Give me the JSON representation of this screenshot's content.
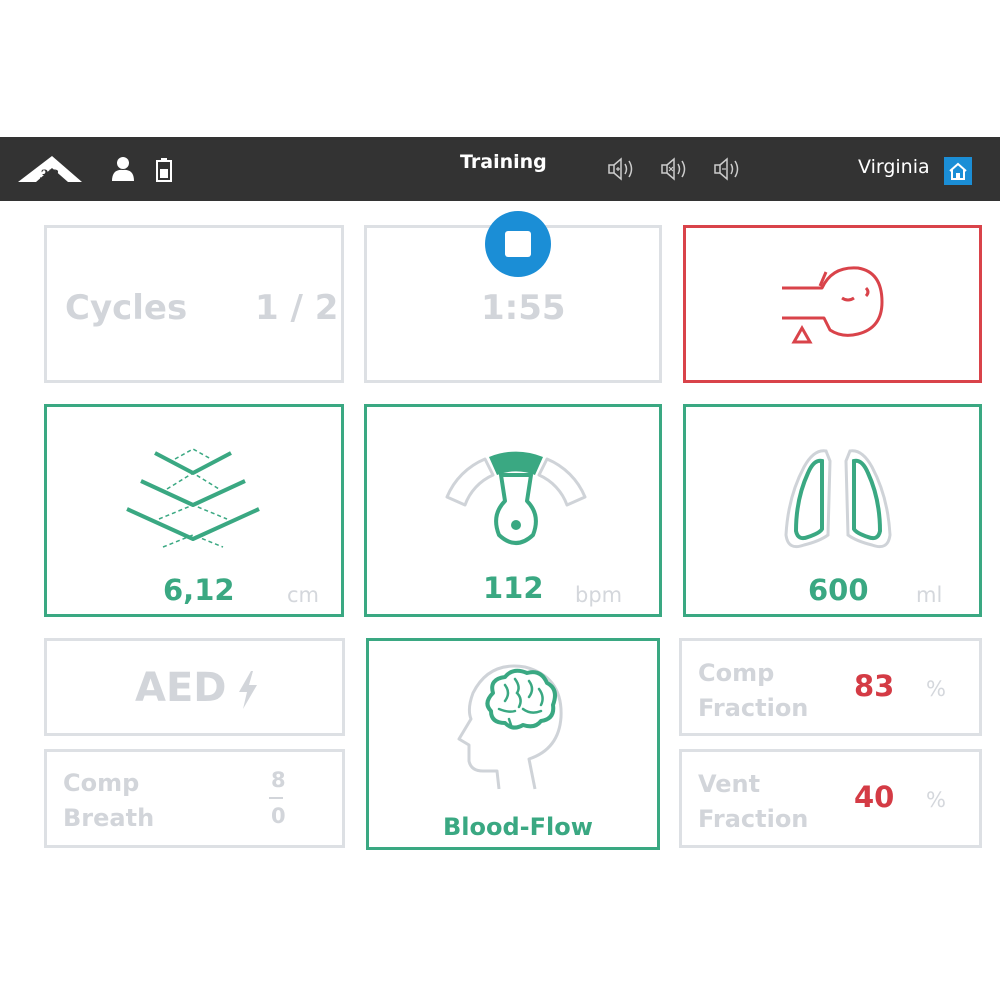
{
  "header": {
    "title": "Training",
    "user_name": "Virginia",
    "icons": [
      "logo-3b",
      "user-icon",
      "battery-icon",
      "volume-up-icon",
      "volume-mute-icon",
      "volume-down-icon",
      "home-icon"
    ]
  },
  "cycles": {
    "label": "Cycles",
    "value": "1 / 2"
  },
  "timer": {
    "value": "1:55",
    "button_icon": "stop-icon"
  },
  "airway": {
    "icon": "head-tilt-airway-icon",
    "status_color": "#d9434a"
  },
  "depth": {
    "value": "6,12",
    "unit": "cm",
    "icon": "compression-depth-icon"
  },
  "rate": {
    "value": "112",
    "unit": "bpm",
    "icon": "rate-gauge-icon"
  },
  "volume": {
    "value": "600",
    "unit": "ml",
    "icon": "lungs-icon"
  },
  "aed": {
    "label": "AED",
    "icon": "lightning-icon"
  },
  "blood_flow": {
    "label": "Blood-Flow",
    "icon": "brain-head-icon"
  },
  "comp_breath": {
    "line1": "Comp",
    "line2": "Breath",
    "numerator": "8",
    "denominator": "0"
  },
  "comp_fraction": {
    "line1": "Comp",
    "line2": "Fraction",
    "value": "83",
    "unit": "%"
  },
  "vent_fraction": {
    "line1": "Vent",
    "line2": "Fraction",
    "value": "40",
    "unit": "%"
  },
  "colors": {
    "green": "#3aa882",
    "red": "#d9434a",
    "grey": "#dde0e4",
    "bar": "#333333",
    "accent_blue": "#1b8ed6"
  }
}
